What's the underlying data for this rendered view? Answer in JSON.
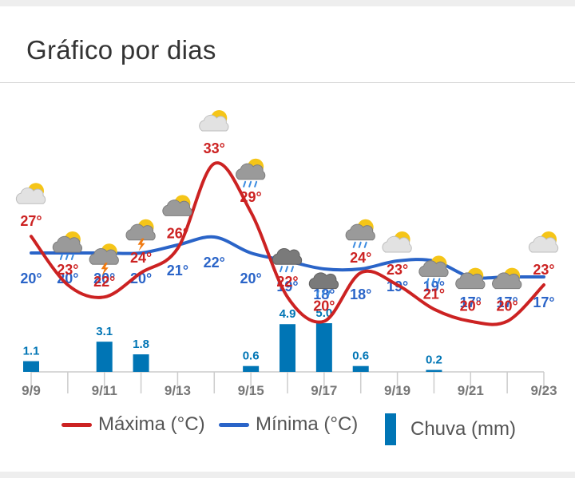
{
  "title": "Gráfico por dias",
  "colors": {
    "max": "#cc2222",
    "min": "#2a64c8",
    "rain": "#0075b5",
    "grid": "#cccccc",
    "tick_label": "#777777"
  },
  "legend": {
    "max": "Máxima (°C)",
    "min": "Mínima (°C)",
    "rain": "Chuva (mm)"
  },
  "chart_data": {
    "type": "line",
    "x_tick_labels": [
      "9/9",
      "9/11",
      "9/13",
      "9/15",
      "9/17",
      "9/19",
      "9/21",
      "9/23"
    ],
    "days": [
      "9/9",
      "9/10",
      "9/11",
      "9/12",
      "9/13",
      "9/14",
      "9/15",
      "9/16",
      "9/17",
      "9/18",
      "9/19",
      "9/20",
      "9/21",
      "9/22",
      "9/23"
    ],
    "series": [
      {
        "name": "Máxima (°C)",
        "values": [
          27,
          23,
          22,
          24,
          26,
          33,
          29,
          22,
          20,
          24,
          23,
          21,
          20,
          20,
          23
        ],
        "labels": [
          "27°",
          "23°",
          "22°",
          "24°",
          "26°",
          "33°",
          "29°",
          "22°",
          "20°",
          "24°",
          "23°",
          "21°",
          "20°",
          "20°",
          "23°"
        ]
      },
      {
        "name": "Mínima (°C)",
        "values": [
          20,
          20,
          20,
          20,
          21,
          22,
          20,
          19,
          18,
          18,
          19,
          19,
          17,
          17,
          17
        ],
        "labels": [
          "20°",
          "20°",
          "20°",
          "20°",
          "21°",
          "22°",
          "20°",
          "19°",
          "18°",
          "18°",
          "19°",
          "19°",
          "17°",
          "17°",
          "17°"
        ]
      },
      {
        "name": "Chuva (mm)",
        "type": "bar",
        "values": [
          1.1,
          0,
          3.1,
          1.8,
          0,
          0,
          0.6,
          4.9,
          5.0,
          0.6,
          0,
          0.2,
          0,
          0,
          0
        ],
        "labels": [
          "1.1",
          "",
          "3.1",
          "1.8",
          "",
          "",
          "0.6",
          "4.9",
          "5.0",
          "0.6",
          "",
          "0.2",
          "",
          "",
          ""
        ]
      }
    ],
    "icons": [
      "partly-cloudy-icon",
      "rain-sun-icon",
      "storm-sun-icon",
      "storm-sun-icon",
      "cloudy-sun-icon",
      "sunny-cloud-icon",
      "rain-sun-icon",
      "rain-cloud-icon",
      "rain-cloud-icon",
      "rain-sun-icon",
      "partly-cloudy-icon",
      "rain-sun-icon",
      "cloudy-sun-icon",
      "cloudy-sun-icon",
      "partly-cloudy-icon"
    ],
    "grid": false,
    "legend_position": "bottom"
  }
}
